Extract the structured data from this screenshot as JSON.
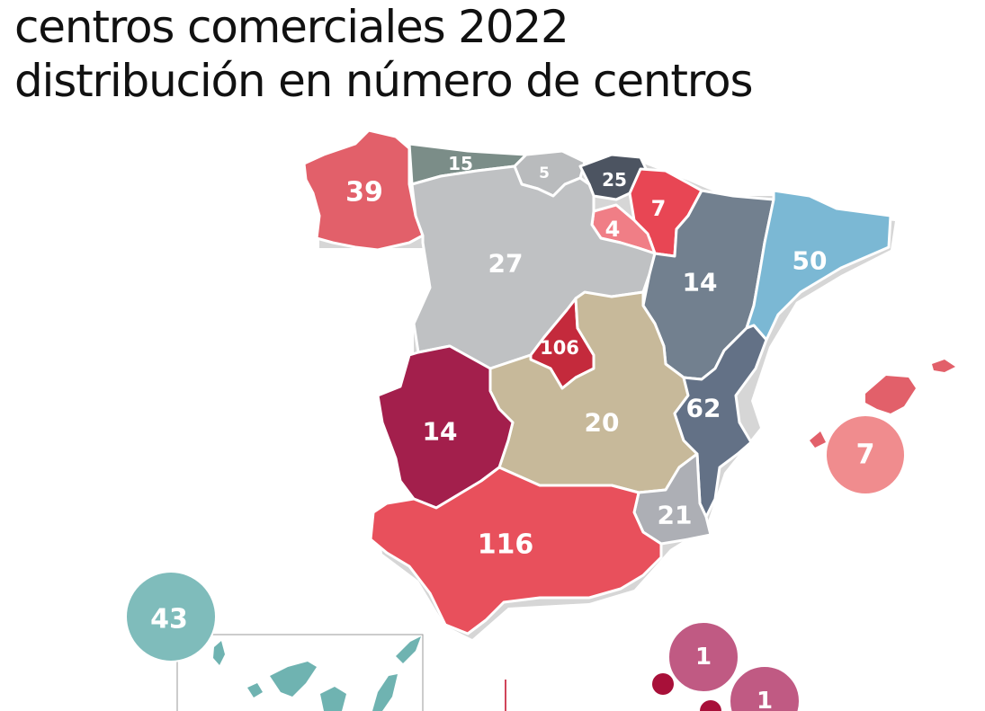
{
  "title_line1": "centros comerciales 2022",
  "title_line2": "distribución en número de centros",
  "regions": {
    "galicia": {
      "value": "39",
      "color": "#e2606a"
    },
    "asturias": {
      "value": "15",
      "color": "#7b8d88"
    },
    "cantabria": {
      "value": "5",
      "color": "#b9bbbd"
    },
    "pais_vasco": {
      "value": "25",
      "color": "#4c5461"
    },
    "navarra": {
      "value": "7",
      "color": "#e84654"
    },
    "la_rioja": {
      "value": "4",
      "color": "#f07e86"
    },
    "castilla_leon": {
      "value": "27",
      "color": "#bfc1c3"
    },
    "aragon": {
      "value": "14",
      "color": "#72808f"
    },
    "cataluna": {
      "value": "50",
      "color": "#7bb8d4"
    },
    "madrid": {
      "value": "106",
      "color": "#c42a3c"
    },
    "castilla_la_mancha": {
      "value": "20",
      "color": "#c7b99a"
    },
    "extremadura": {
      "value": "14",
      "color": "#a31f4c"
    },
    "valencia": {
      "value": "62",
      "color": "#637186"
    },
    "murcia": {
      "value": "21",
      "color": "#adafb5"
    },
    "andalucia": {
      "value": "116",
      "color": "#e8505c"
    },
    "baleares": {
      "value": "7",
      "color": "#f08c8e"
    },
    "canarias": {
      "value": "43",
      "color": "#7fbcbb"
    },
    "ceuta": {
      "value": "1",
      "color": "#c05a83"
    },
    "melilla": {
      "value": "1",
      "color": "#c05a83"
    }
  },
  "colors": {
    "baleares_islands": "#e2606a",
    "canarias_islands": "#6fb3b1",
    "ceuta_melilla_dot": "#a81039"
  }
}
